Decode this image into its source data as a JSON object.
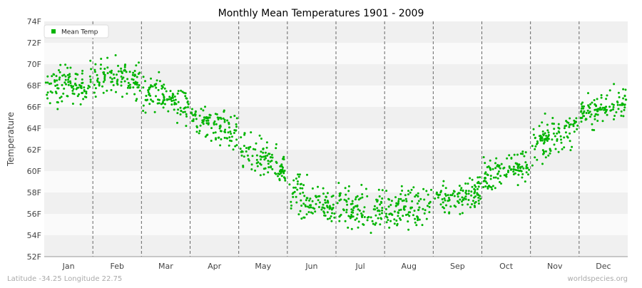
{
  "chart_data": {
    "type": "scatter",
    "title": "Monthly Mean Temperatures 1901 - 2009",
    "ylabel": "Temperature",
    "xlabel": "",
    "categories": [
      "Jan",
      "Feb",
      "Mar",
      "Apr",
      "May",
      "Jun",
      "Jul",
      "Aug",
      "Sep",
      "Oct",
      "Nov",
      "Dec"
    ],
    "ylim": [
      52,
      74
    ],
    "y_ticks": [
      "52F",
      "54F",
      "56F",
      "58F",
      "60F",
      "62F",
      "64F",
      "66F",
      "68F",
      "70F",
      "72F",
      "74F"
    ],
    "grid": "horizontal bands; dashed vertical month separators",
    "legend": {
      "position": "top-left",
      "entries": [
        "Mean Temp"
      ]
    },
    "series": [
      {
        "name": "Mean Temp",
        "color": "#00b400",
        "monthly_center": [
          68.1,
          68.9,
          66.9,
          64.4,
          61.0,
          57.1,
          56.4,
          56.6,
          57.6,
          60.0,
          63.3,
          65.9
        ],
        "monthly_spread": [
          1.6,
          1.5,
          1.5,
          1.5,
          1.6,
          1.7,
          1.7,
          1.6,
          1.5,
          1.5,
          1.5,
          1.3
        ],
        "years": 109
      }
    ]
  },
  "footer": {
    "left": "Latitude -34.25 Longitude 22.75",
    "right": "worldspecies.org"
  },
  "colors": {
    "band_light": "#fafafa",
    "band_dark": "#f0f0f0",
    "separator": "#666666",
    "axis_text": "#444444",
    "footer_text": "#aaaaaa"
  }
}
